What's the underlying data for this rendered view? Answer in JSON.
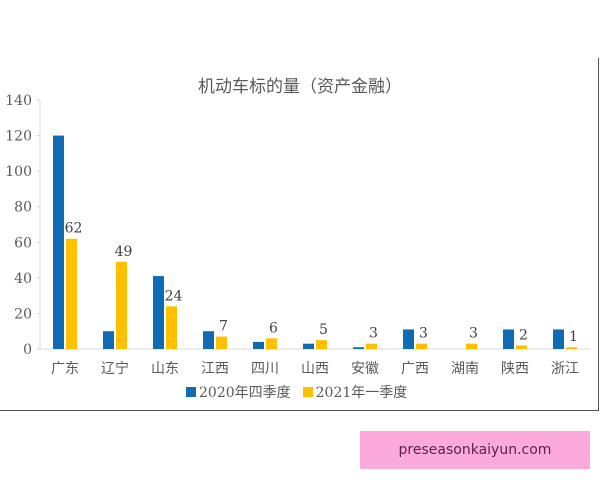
{
  "chart_data": {
    "type": "bar",
    "title": "机动车标的量（资产金融）",
    "categories": [
      "广东",
      "辽宁",
      "山东",
      "江西",
      "四川",
      "山西",
      "安徽",
      "广西",
      "湖南",
      "陕西",
      "浙江"
    ],
    "series": [
      {
        "name": "2020年四季度",
        "color": "#0f6bb4",
        "values": [
          120,
          10,
          41,
          10,
          4,
          3,
          1,
          11,
          0,
          11,
          11
        ]
      },
      {
        "name": "2021年一季度",
        "color": "#ffc000",
        "values": [
          62,
          49,
          24,
          7,
          6,
          5,
          3,
          3,
          3,
          2,
          1
        ],
        "data_labels": true
      }
    ],
    "ylim": [
      0,
      140
    ],
    "yticks": [
      0,
      20,
      40,
      60,
      80,
      100,
      120,
      140
    ],
    "legend": "bottom",
    "grid": false
  },
  "watermark": "preseasonkaiyun.com"
}
